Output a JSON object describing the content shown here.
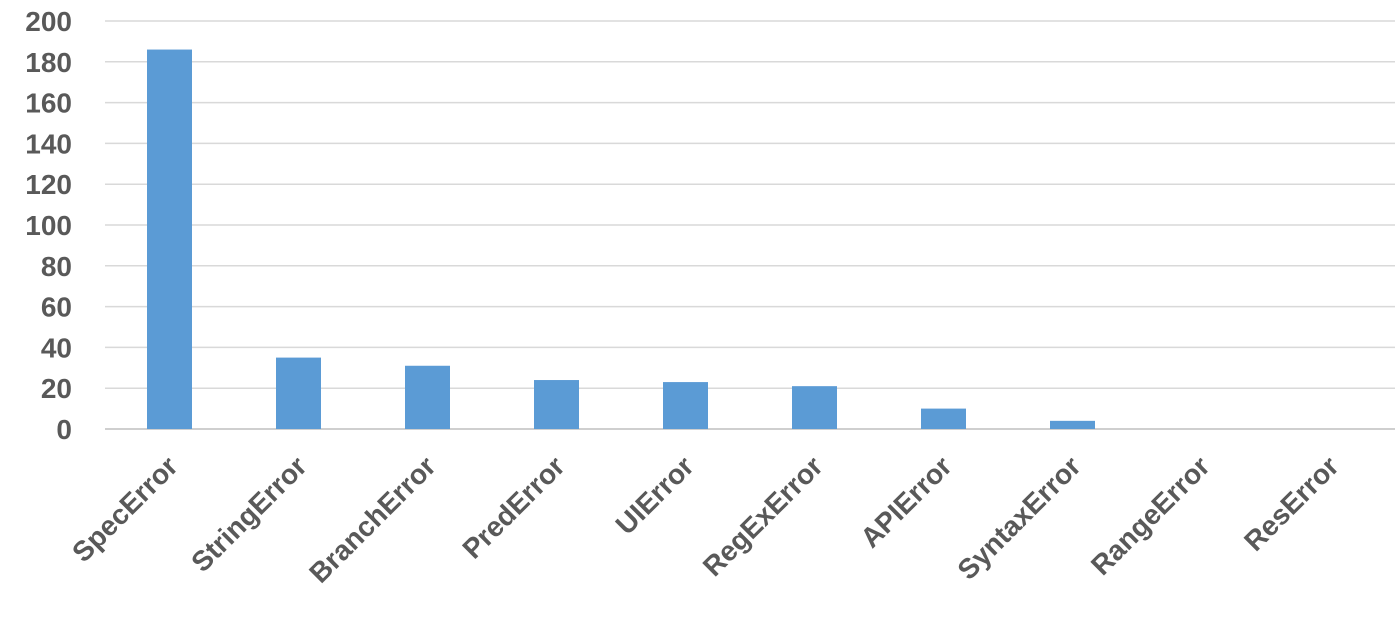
{
  "chart_data": {
    "type": "bar",
    "categories": [
      "SpecError",
      "StringError",
      "BranchError",
      "PredError",
      "UIError",
      "RegExError",
      "APIError",
      "SyntaxError",
      "RangeError",
      "ResError"
    ],
    "values": [
      186,
      35,
      31,
      24,
      23,
      21,
      10,
      4,
      0,
      0
    ],
    "ylim": [
      0,
      200
    ],
    "yticks": [
      0,
      20,
      40,
      60,
      80,
      100,
      120,
      140,
      160,
      180,
      200
    ],
    "grid": true,
    "legend": "none",
    "title": "",
    "xlabel": "",
    "ylabel": ""
  },
  "colors": {
    "bar": "#5b9bd5",
    "grid": "#d9d9d9",
    "axis": "#bfbfbf",
    "label": "#595959"
  }
}
